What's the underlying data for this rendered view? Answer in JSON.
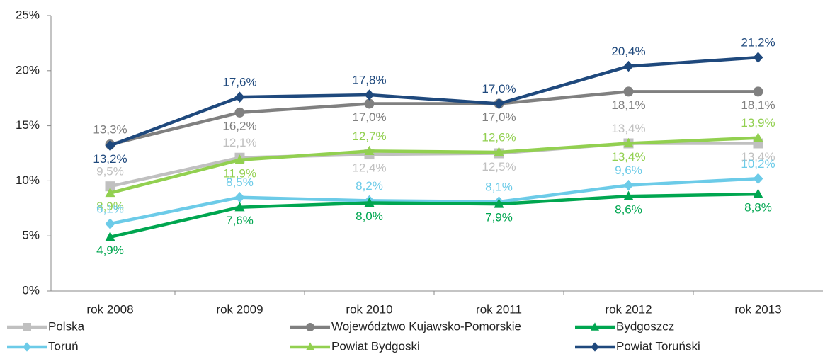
{
  "chart_data": {
    "type": "line",
    "categories": [
      "rok 2008",
      "rok 2009",
      "rok 2010",
      "rok 2011",
      "rok 2012",
      "rok 2013"
    ],
    "ylim": [
      0,
      25
    ],
    "yticks": [
      {
        "value": 0,
        "label": "0%"
      },
      {
        "value": 5,
        "label": "5%"
      },
      {
        "value": 10,
        "label": "10%"
      },
      {
        "value": 15,
        "label": "15%"
      },
      {
        "value": 20,
        "label": "20%"
      },
      {
        "value": 25,
        "label": "25%"
      }
    ],
    "legend": "bottom",
    "series": [
      {
        "name": "Polska",
        "color": "#c0c0c0",
        "marker": "square",
        "values": [
          9.5,
          12.1,
          12.4,
          12.5,
          13.4,
          13.4
        ],
        "value_labels": [
          "9,5%",
          "12,1%",
          "12,4%",
          "12,5%",
          "13,4%",
          "13,4%"
        ]
      },
      {
        "name": "Województwo Kujawsko-Pomorskie",
        "color": "#808080",
        "marker": "circle",
        "values": [
          13.3,
          16.2,
          17.0,
          17.0,
          18.1,
          18.1
        ],
        "value_labels": [
          "13,3%",
          "16,2%",
          "17,0%",
          "17,0%",
          "18,1%",
          "18,1%"
        ]
      },
      {
        "name": "Bydgoszcz",
        "color": "#00a650",
        "marker": "triangle",
        "values": [
          4.9,
          7.6,
          8.0,
          7.9,
          8.6,
          8.8
        ],
        "value_labels": [
          "4,9%",
          "7,6%",
          "8,0%",
          "7,9%",
          "8,6%",
          "8,8%"
        ]
      },
      {
        "name": "Toruń",
        "color": "#6ccbe8",
        "marker": "diamond",
        "values": [
          6.1,
          8.5,
          8.2,
          8.1,
          9.6,
          10.2
        ],
        "value_labels": [
          "6,1%",
          "8,5%",
          "8,2%",
          "8,1%",
          "9,6%",
          "10,2%"
        ]
      },
      {
        "name": "Powiat Bydgoski",
        "color": "#92d050",
        "marker": "triangle",
        "values": [
          8.9,
          11.9,
          12.7,
          12.6,
          13.4,
          13.9
        ],
        "value_labels": [
          "8,9%",
          "11,9%",
          "12,7%",
          "12,6%",
          "13,4%",
          "13,9%"
        ]
      },
      {
        "name": "Powiat Toruński",
        "color": "#1f497d",
        "marker": "diamond",
        "values": [
          13.2,
          17.6,
          17.8,
          17.0,
          20.4,
          21.2
        ],
        "value_labels": [
          "13,2%",
          "17,6%",
          "17,8%",
          "17,0%",
          "20,4%",
          "21,2%"
        ]
      }
    ]
  }
}
